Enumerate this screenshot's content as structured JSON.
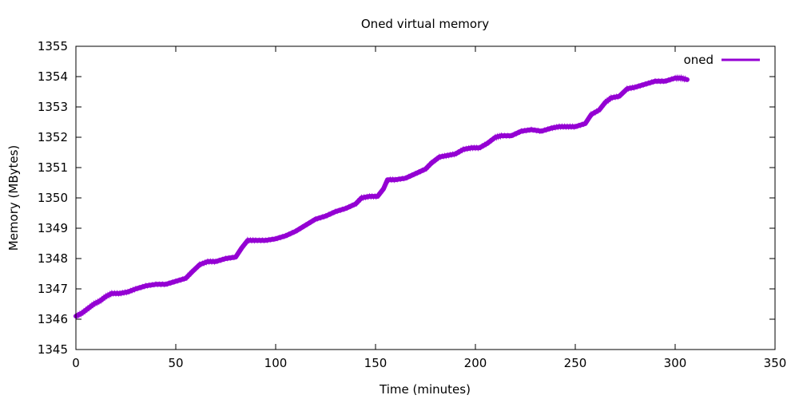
{
  "chart_data": {
    "type": "line",
    "title": "Oned virtual memory",
    "xlabel": "Time (minutes)",
    "ylabel": "Memory (MBytes)",
    "xlim": [
      0,
      350
    ],
    "ylim": [
      1345,
      1355
    ],
    "xticks": [
      0,
      50,
      100,
      150,
      200,
      250,
      300,
      350
    ],
    "yticks": [
      1345,
      1346,
      1347,
      1348,
      1349,
      1350,
      1351,
      1352,
      1353,
      1354,
      1355
    ],
    "grid": false,
    "legend_position": "top-right",
    "series": [
      {
        "name": "oned",
        "color": "#9400d3",
        "points": [
          [
            0,
            1346.1
          ],
          [
            3,
            1346.2
          ],
          [
            6,
            1346.35
          ],
          [
            9,
            1346.5
          ],
          [
            12,
            1346.6
          ],
          [
            15,
            1346.75
          ],
          [
            18,
            1346.85
          ],
          [
            22,
            1346.85
          ],
          [
            26,
            1346.9
          ],
          [
            30,
            1347.0
          ],
          [
            35,
            1347.1
          ],
          [
            40,
            1347.15
          ],
          [
            45,
            1347.15
          ],
          [
            50,
            1347.25
          ],
          [
            55,
            1347.35
          ],
          [
            58,
            1347.55
          ],
          [
            62,
            1347.8
          ],
          [
            66,
            1347.9
          ],
          [
            70,
            1347.9
          ],
          [
            75,
            1348.0
          ],
          [
            80,
            1348.05
          ],
          [
            83,
            1348.35
          ],
          [
            86,
            1348.6
          ],
          [
            90,
            1348.6
          ],
          [
            95,
            1348.6
          ],
          [
            100,
            1348.65
          ],
          [
            105,
            1348.75
          ],
          [
            110,
            1348.9
          ],
          [
            115,
            1349.1
          ],
          [
            120,
            1349.3
          ],
          [
            125,
            1349.4
          ],
          [
            130,
            1349.55
          ],
          [
            135,
            1349.65
          ],
          [
            140,
            1349.8
          ],
          [
            143,
            1350.0
          ],
          [
            147,
            1350.05
          ],
          [
            151,
            1350.05
          ],
          [
            154,
            1350.3
          ],
          [
            156,
            1350.6
          ],
          [
            160,
            1350.6
          ],
          [
            165,
            1350.65
          ],
          [
            170,
            1350.8
          ],
          [
            175,
            1350.95
          ],
          [
            178,
            1351.15
          ],
          [
            182,
            1351.35
          ],
          [
            186,
            1351.4
          ],
          [
            190,
            1351.45
          ],
          [
            194,
            1351.6
          ],
          [
            198,
            1351.65
          ],
          [
            202,
            1351.65
          ],
          [
            206,
            1351.8
          ],
          [
            210,
            1352.0
          ],
          [
            213,
            1352.05
          ],
          [
            218,
            1352.05
          ],
          [
            223,
            1352.2
          ],
          [
            228,
            1352.25
          ],
          [
            233,
            1352.2
          ],
          [
            238,
            1352.3
          ],
          [
            242,
            1352.35
          ],
          [
            246,
            1352.35
          ],
          [
            250,
            1352.35
          ],
          [
            255,
            1352.45
          ],
          [
            258,
            1352.75
          ],
          [
            262,
            1352.9
          ],
          [
            265,
            1353.15
          ],
          [
            268,
            1353.3
          ],
          [
            272,
            1353.35
          ],
          [
            276,
            1353.6
          ],
          [
            280,
            1353.65
          ],
          [
            285,
            1353.75
          ],
          [
            290,
            1353.85
          ],
          [
            295,
            1353.85
          ],
          [
            300,
            1353.95
          ],
          [
            303,
            1353.95
          ],
          [
            306,
            1353.9
          ]
        ]
      }
    ]
  }
}
